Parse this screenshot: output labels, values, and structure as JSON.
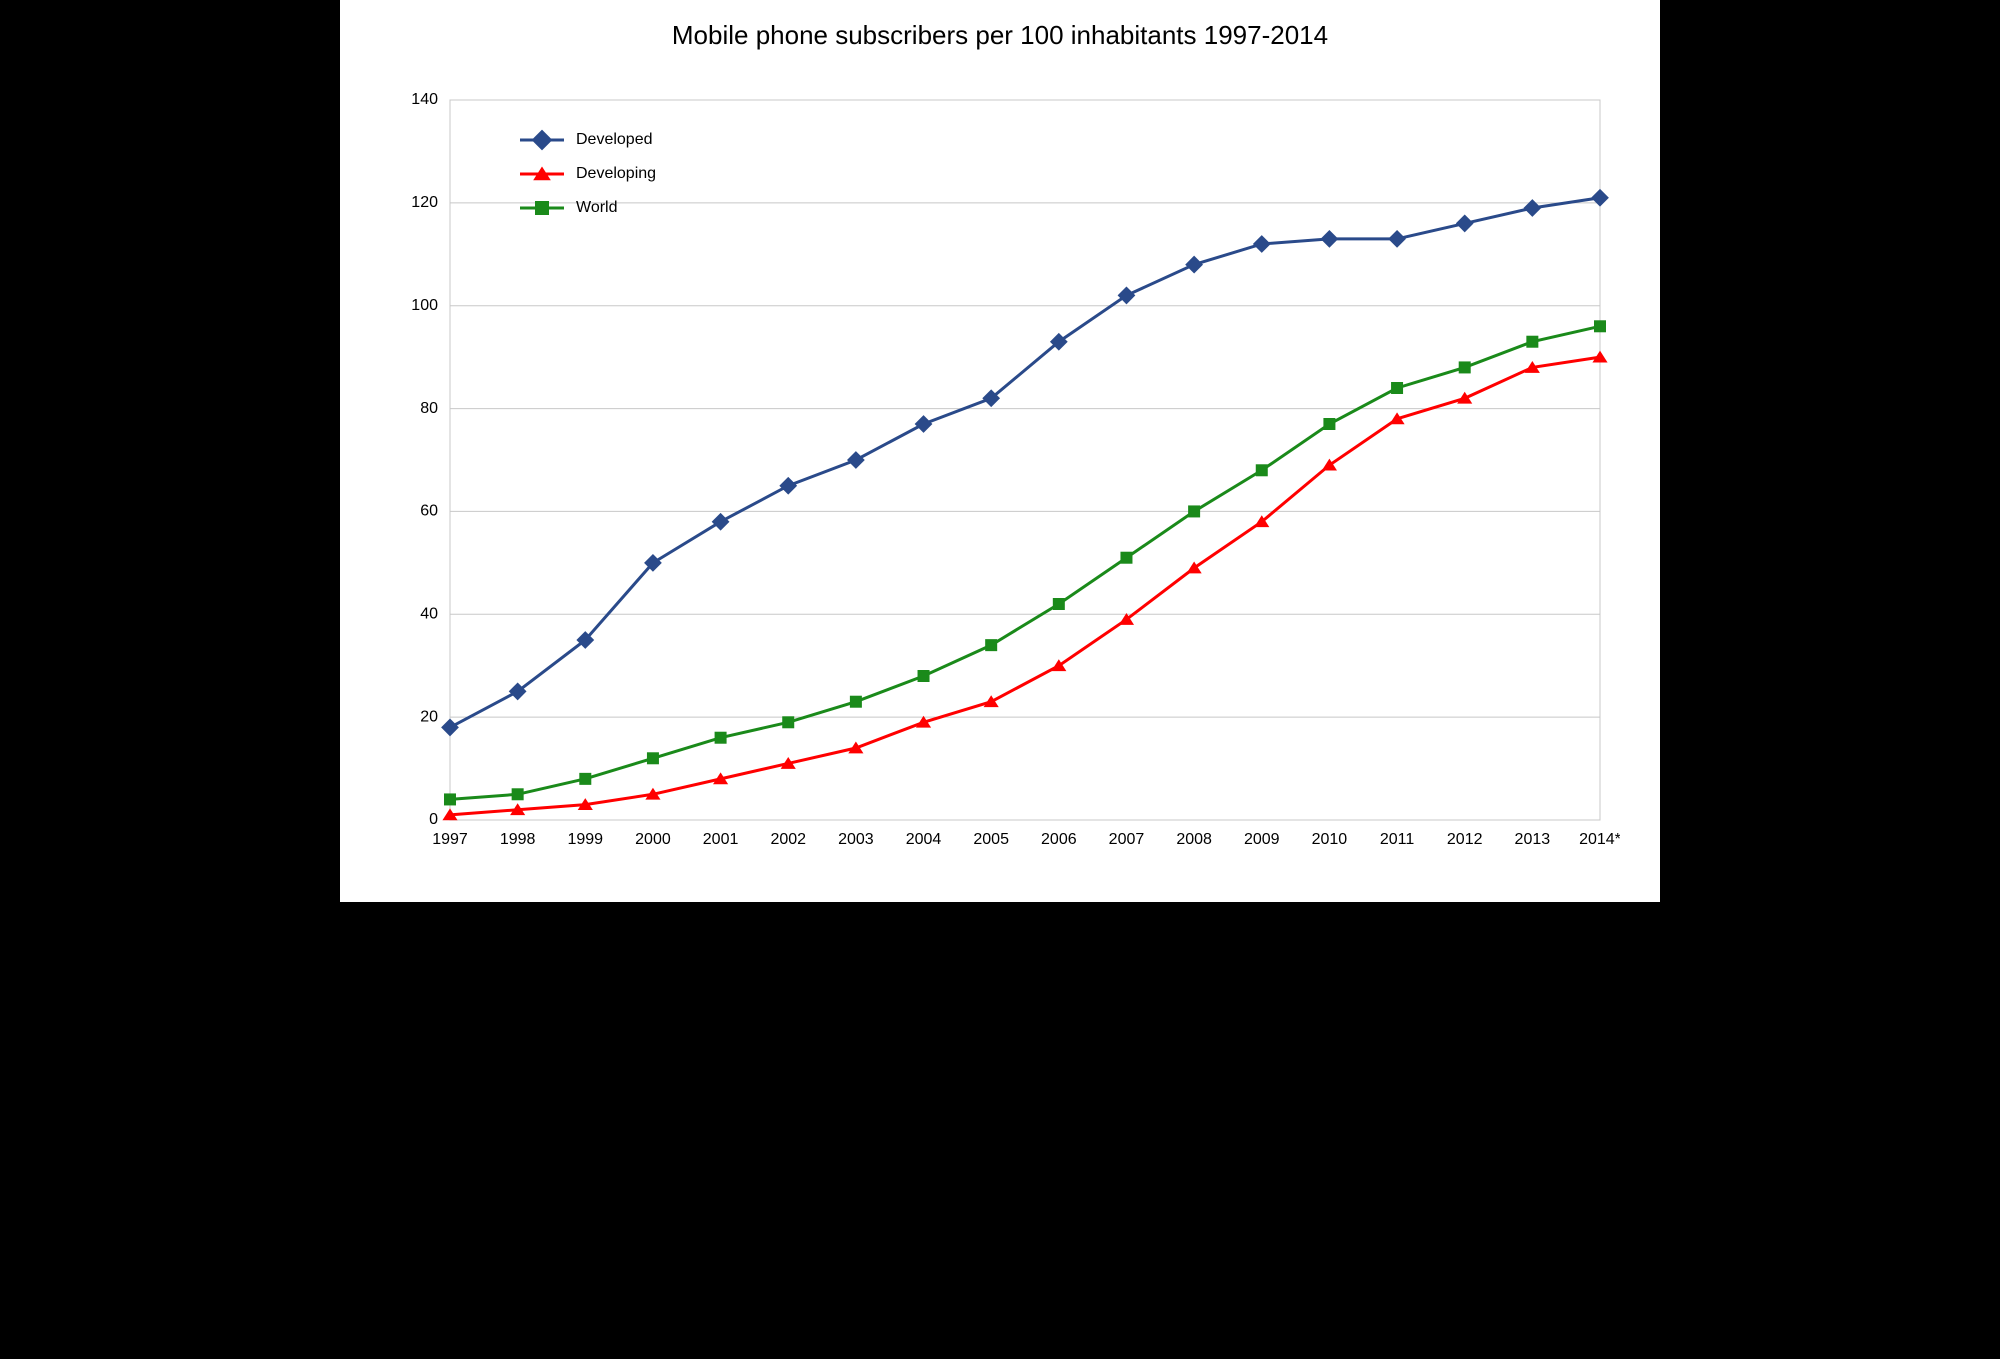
{
  "chart": {
    "type": "line",
    "title": "Mobile phone subscribers per 100 inhabitants 1997-2014",
    "title_fontsize": 26,
    "background_color": "#ffffff",
    "page_background": "#000000",
    "grid_color": "#c8c8c8",
    "plot_border_color": "#c8c8c8",
    "x": {
      "categories": [
        "1997",
        "1998",
        "1999",
        "2000",
        "2001",
        "2002",
        "2003",
        "2004",
        "2005",
        "2006",
        "2007",
        "2008",
        "2009",
        "2010",
        "2011",
        "2012",
        "2013",
        "2014*"
      ],
      "tick_fontsize": 16
    },
    "y": {
      "min": 0,
      "max": 140,
      "tick_step": 20,
      "tick_fontsize": 16
    },
    "legend": {
      "position": "top-left",
      "fontsize": 16,
      "items": [
        {
          "label": "Developed",
          "color": "#2a4a8a",
          "marker": "diamond"
        },
        {
          "label": "Developing",
          "color": "#ff0000",
          "marker": "triangle"
        },
        {
          "label": "World",
          "color": "#1a8a1a",
          "marker": "square"
        }
      ]
    },
    "series": [
      {
        "name": "Developed",
        "color": "#2a4a8a",
        "line_width": 3,
        "marker": "diamond",
        "marker_size": 12,
        "values": [
          18,
          25,
          35,
          50,
          58,
          65,
          70,
          77,
          82,
          93,
          102,
          108,
          112,
          113,
          113,
          116,
          119,
          121
        ]
      },
      {
        "name": "Developing",
        "color": "#ff0000",
        "line_width": 3,
        "marker": "triangle",
        "marker_size": 12,
        "values": [
          1,
          2,
          3,
          5,
          8,
          11,
          14,
          19,
          23,
          30,
          39,
          49,
          58,
          69,
          78,
          82,
          88,
          90
        ]
      },
      {
        "name": "World",
        "color": "#1a8a1a",
        "line_width": 3,
        "marker": "square",
        "marker_size": 12,
        "values": [
          4,
          5,
          8,
          12,
          16,
          19,
          23,
          28,
          34,
          42,
          51,
          60,
          68,
          77,
          84,
          88,
          93,
          96
        ]
      }
    ]
  }
}
